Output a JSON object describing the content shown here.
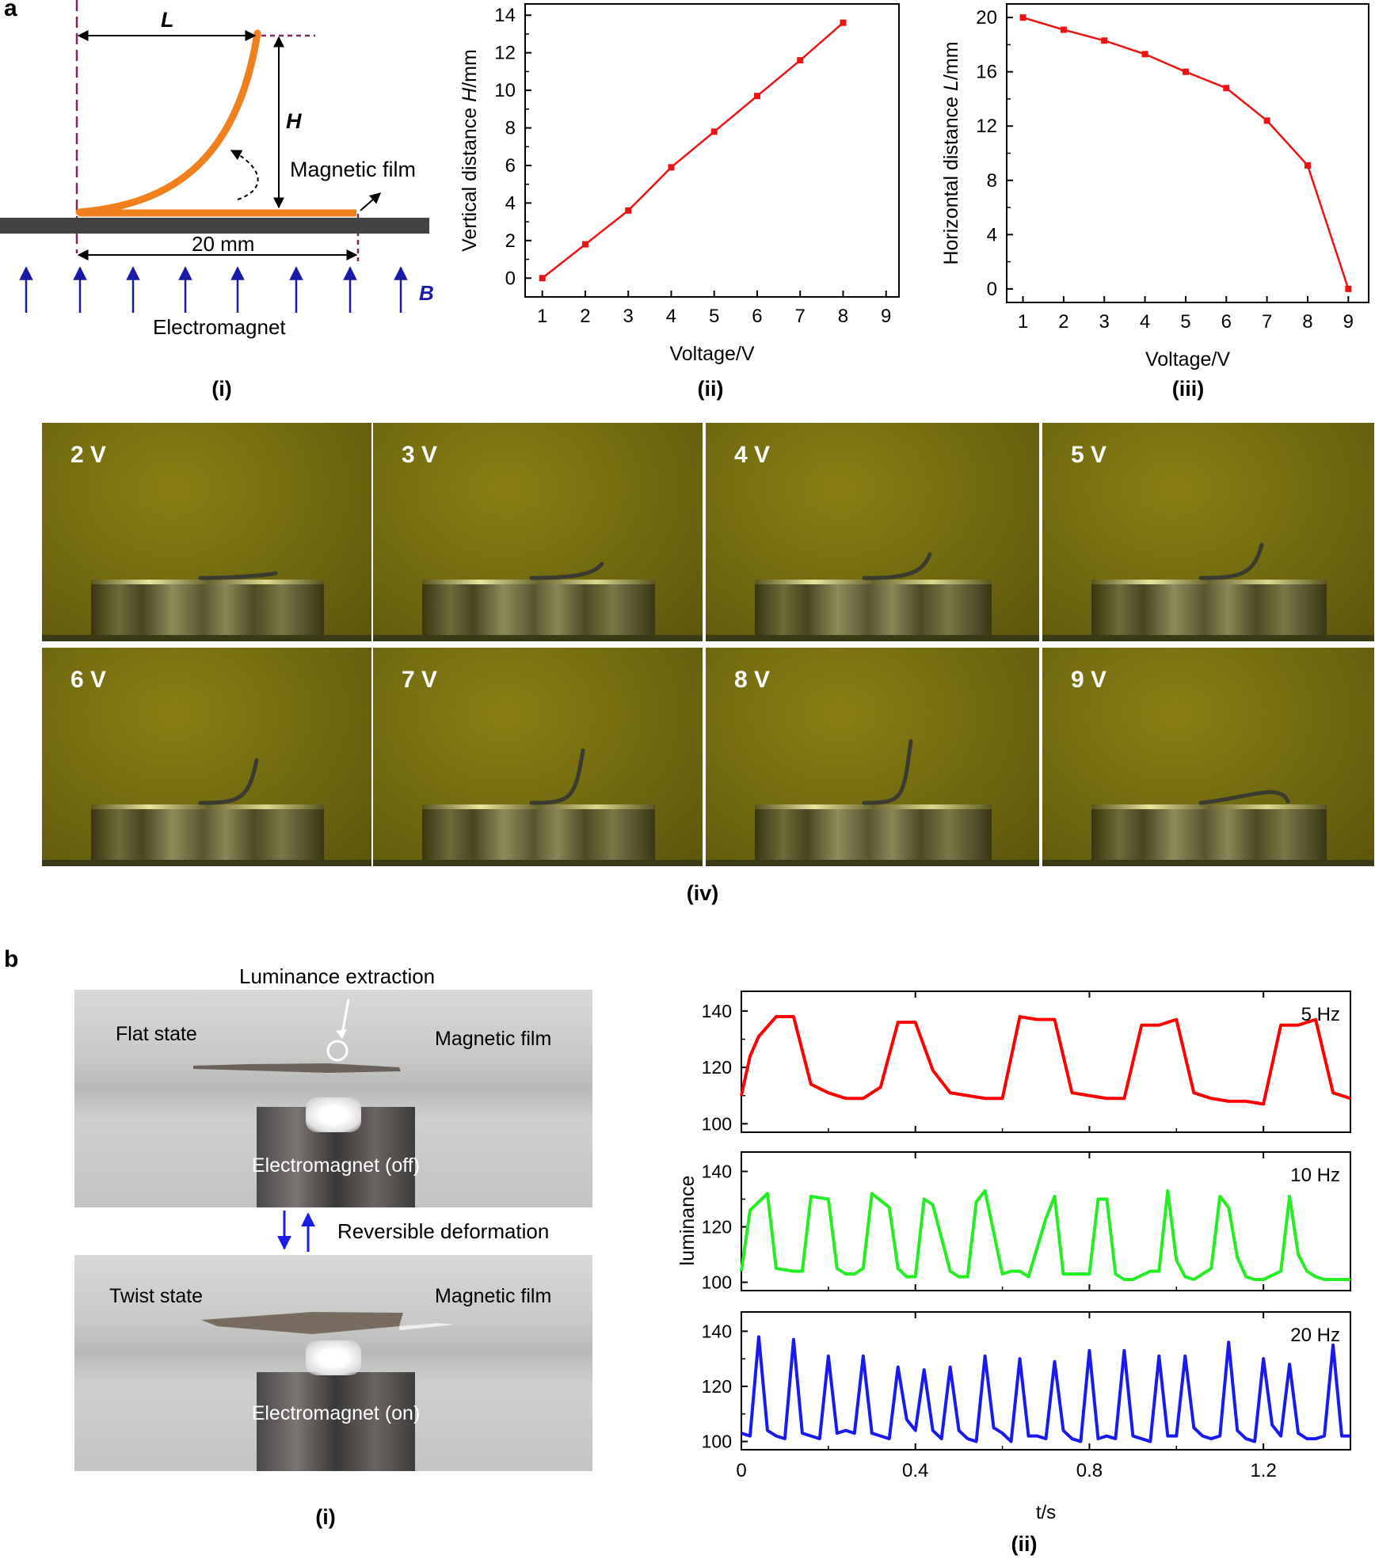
{
  "panel_a": {
    "letter": "a",
    "schematic": {
      "L_label": "L",
      "H_label": "H",
      "film_label": "Magnetic film",
      "length_label": "20 mm",
      "magnet_label": "Electromagnet",
      "B_label": "B",
      "sublabel": "(i)"
    },
    "photos": {
      "sublabel": "(iv)",
      "frames": [
        "2 V",
        "3 V",
        "4 V",
        "5 V",
        "6 V",
        "7 V",
        "8 V",
        "9 V"
      ]
    }
  },
  "panel_b": {
    "letter": "b",
    "photo": {
      "title": "Luminance extraction",
      "flat_label": "Flat state",
      "film_label_top": "Magnetic film",
      "magnet_off": "Electromagnet (off)",
      "reversible": "Reversible deformation",
      "twist_label": "Twist state",
      "film_label_bottom": "Magnetic film",
      "magnet_on": "Electromagnet (on)",
      "sublabel": "(i)"
    }
  },
  "chart_data": [
    {
      "id": "a-ii",
      "type": "line",
      "sublabel": "(ii)",
      "xlabel": "Voltage/V",
      "ylabel_prefix": "Vertical distance ",
      "ylabel_var": "H",
      "ylabel_suffix": "/mm",
      "x": [
        1,
        2,
        3,
        4,
        5,
        6,
        7,
        8
      ],
      "values": [
        0,
        1.8,
        3.6,
        5.9,
        7.8,
        9.7,
        11.6,
        13.6
      ],
      "xlim": [
        0.6,
        9.3
      ],
      "ylim": [
        -1,
        14.6
      ],
      "xticks": [
        1,
        2,
        3,
        4,
        5,
        6,
        7,
        8,
        9
      ],
      "yticks": [
        0,
        2,
        4,
        6,
        8,
        10,
        12,
        14
      ],
      "color": "#ee1111"
    },
    {
      "id": "a-iii",
      "type": "line",
      "sublabel": "(iii)",
      "xlabel": "Voltage/V",
      "ylabel_prefix": "Horizontal distance ",
      "ylabel_var": "L",
      "ylabel_suffix": "/mm",
      "x": [
        1,
        2,
        3,
        4,
        5,
        6,
        7,
        8,
        9
      ],
      "values": [
        20,
        19.1,
        18.3,
        17.3,
        16,
        14.8,
        12.4,
        9.1,
        0
      ],
      "xlim": [
        0.6,
        9.5
      ],
      "ylim": [
        -1,
        21
      ],
      "xticks": [
        1,
        2,
        3,
        4,
        5,
        6,
        7,
        8,
        9
      ],
      "yticks": [
        0,
        4,
        8,
        12,
        16,
        20
      ],
      "color": "#ee1111"
    },
    {
      "id": "b-ii",
      "type": "line",
      "sublabel": "(ii)",
      "xlabel": "t/s",
      "ylabel": "luminance",
      "xlim": [
        0,
        1.4
      ],
      "ylim": [
        97,
        147
      ],
      "xticks": [
        0,
        0.4,
        0.8,
        1.2
      ],
      "xtick_labels": [
        "0",
        "0.4",
        "0.8",
        "1.2"
      ],
      "yticks": [
        100,
        120,
        140
      ],
      "series": [
        {
          "name": "5 Hz",
          "color": "#ff0000",
          "t": [
            0,
            0.02,
            0.04,
            0.08,
            0.12,
            0.16,
            0.2,
            0.24,
            0.28,
            0.32,
            0.36,
            0.4,
            0.44,
            0.48,
            0.52,
            0.56,
            0.6,
            0.64,
            0.68,
            0.72,
            0.76,
            0.8,
            0.84,
            0.88,
            0.92,
            0.96,
            1.0,
            1.04,
            1.08,
            1.12,
            1.16,
            1.2,
            1.24,
            1.28,
            1.32,
            1.36,
            1.4
          ],
          "values": [
            110,
            124,
            131,
            138,
            138,
            114,
            111,
            109,
            109,
            113,
            136,
            136,
            119,
            111,
            110,
            109,
            109,
            138,
            137,
            137,
            111,
            110,
            109,
            109,
            135,
            135,
            137,
            111,
            109,
            108,
            108,
            107,
            135,
            135,
            137,
            111,
            109
          ]
        },
        {
          "name": "10 Hz",
          "color": "#22ee22",
          "t": [
            0,
            0.02,
            0.04,
            0.06,
            0.08,
            0.12,
            0.14,
            0.16,
            0.2,
            0.22,
            0.24,
            0.26,
            0.28,
            0.3,
            0.34,
            0.36,
            0.38,
            0.4,
            0.42,
            0.44,
            0.48,
            0.5,
            0.52,
            0.54,
            0.56,
            0.6,
            0.62,
            0.64,
            0.66,
            0.7,
            0.72,
            0.74,
            0.78,
            0.8,
            0.82,
            0.84,
            0.86,
            0.88,
            0.9,
            0.94,
            0.96,
            0.98,
            1.0,
            1.02,
            1.04,
            1.08,
            1.1,
            1.12,
            1.14,
            1.16,
            1.18,
            1.2,
            1.24,
            1.26,
            1.28,
            1.3,
            1.32,
            1.34,
            1.38,
            1.4
          ],
          "values": [
            104,
            126,
            129,
            132,
            105,
            104,
            104,
            131,
            130,
            105,
            103,
            103,
            105,
            132,
            127,
            105,
            102,
            102,
            130,
            128,
            104,
            102,
            102,
            129,
            133,
            103,
            104,
            104,
            102,
            123,
            131,
            103,
            103,
            103,
            130,
            130,
            103,
            101,
            101,
            104,
            104,
            133,
            108,
            102,
            101,
            105,
            131,
            127,
            109,
            102,
            101,
            101,
            104,
            131,
            110,
            104,
            102,
            101,
            101,
            101
          ]
        },
        {
          "name": "20 Hz",
          "color": "#1a1aee",
          "t": [
            0,
            0.02,
            0.04,
            0.06,
            0.08,
            0.1,
            0.12,
            0.14,
            0.16,
            0.18,
            0.2,
            0.22,
            0.24,
            0.26,
            0.28,
            0.3,
            0.32,
            0.34,
            0.36,
            0.38,
            0.4,
            0.42,
            0.44,
            0.46,
            0.48,
            0.5,
            0.52,
            0.54,
            0.56,
            0.58,
            0.6,
            0.62,
            0.64,
            0.66,
            0.68,
            0.7,
            0.72,
            0.74,
            0.76,
            0.78,
            0.8,
            0.82,
            0.84,
            0.86,
            0.88,
            0.9,
            0.92,
            0.94,
            0.96,
            0.98,
            1.0,
            1.02,
            1.04,
            1.06,
            1.08,
            1.1,
            1.12,
            1.14,
            1.16,
            1.18,
            1.2,
            1.22,
            1.24,
            1.26,
            1.28,
            1.3,
            1.32,
            1.34,
            1.36,
            1.38,
            1.4
          ],
          "values": [
            103,
            102,
            138,
            104,
            102,
            101,
            137,
            103,
            102,
            101,
            131,
            103,
            104,
            103,
            131,
            103,
            102,
            101,
            127,
            108,
            104,
            126,
            104,
            101,
            127,
            104,
            101,
            100,
            131,
            105,
            103,
            100,
            130,
            102,
            102,
            101,
            129,
            104,
            101,
            100,
            133,
            101,
            102,
            101,
            133,
            102,
            101,
            100,
            131,
            102,
            102,
            131,
            105,
            102,
            101,
            102,
            136,
            104,
            101,
            100,
            130,
            106,
            102,
            128,
            103,
            101,
            101,
            102,
            135,
            102,
            102
          ]
        }
      ]
    }
  ]
}
